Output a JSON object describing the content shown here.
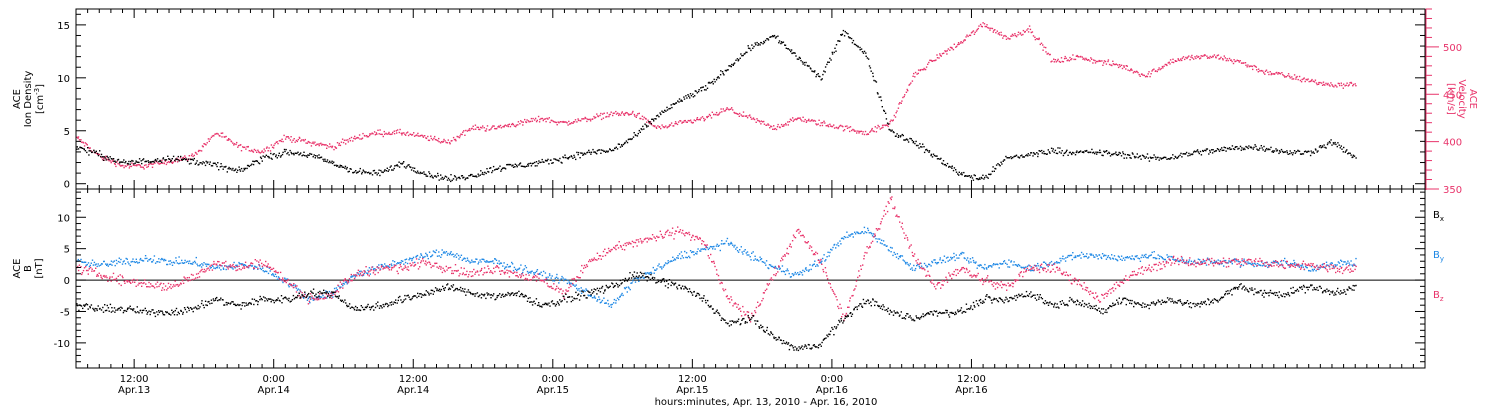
{
  "chart_data": [
    {
      "type": "scatter",
      "panel": "top",
      "ylabel_left": [
        "ACE",
        "Ion Density",
        "[cm",
        "-3",
        "]"
      ],
      "ylabel_right": [
        "ACE",
        "Velocity",
        "[km/s]"
      ],
      "ylim_left": [
        -0.5,
        16.5
      ],
      "ylim_right": [
        350,
        540
      ],
      "yticks_left": [
        0,
        5,
        10,
        15
      ],
      "yticks_right": [
        350,
        400,
        450,
        500
      ],
      "colors": {
        "density": "#000000",
        "velocity": "#e8336a"
      },
      "series": [
        {
          "axis": "left",
          "color": "#000000",
          "hours": [
            0,
            2,
            4,
            6,
            8,
            10,
            12,
            14,
            16,
            18,
            20,
            22,
            24,
            26,
            28,
            30,
            32,
            34,
            36,
            38,
            40,
            42,
            44,
            46,
            48,
            50,
            52,
            54,
            56,
            58,
            60,
            62,
            64,
            66,
            68,
            70,
            72,
            74,
            76,
            78,
            80,
            82,
            84,
            86,
            88,
            90,
            92,
            94,
            96,
            98,
            100,
            102,
            104,
            106,
            108,
            110
          ],
          "values": [
            3.5,
            2.8,
            2.0,
            2.2,
            2.5,
            2.2,
            1.8,
            1.2,
            2.5,
            3.0,
            2.8,
            2.0,
            1.2,
            1.0,
            2.0,
            1.0,
            0.5,
            0.8,
            1.5,
            1.8,
            2.0,
            2.5,
            3.0,
            3.2,
            4.5,
            6.5,
            8.0,
            9.0,
            11.0,
            13.0,
            14.0,
            12.0,
            10.0,
            14.5,
            12.0,
            5.0,
            4.0,
            2.5,
            1.0,
            0.5,
            2.5,
            2.8,
            3.2,
            3.0,
            3.0,
            2.8,
            2.5,
            2.5,
            3.0,
            3.2,
            3.5,
            3.5,
            3.0,
            3.0,
            4.0,
            2.5
          ],
          "breaks": [],
          "scatter": 0.45
        },
        {
          "axis": "right",
          "color": "#e8336a",
          "hours": [
            0,
            2,
            4,
            6,
            8,
            10,
            12,
            14,
            16,
            18,
            20,
            22,
            24,
            26,
            28,
            30,
            32,
            34,
            36,
            38,
            40,
            42,
            44,
            46,
            48,
            50,
            52,
            54,
            56,
            58,
            60,
            62,
            64,
            66,
            68,
            70,
            72,
            74,
            76,
            78,
            80,
            82,
            84,
            86,
            88,
            90,
            92,
            94,
            96,
            98,
            100,
            102,
            104,
            106,
            108,
            110
          ],
          "values": [
            405,
            385,
            375,
            375,
            380,
            385,
            410,
            395,
            390,
            405,
            400,
            395,
            405,
            410,
            410,
            405,
            400,
            415,
            415,
            420,
            425,
            420,
            425,
            430,
            430,
            415,
            420,
            425,
            435,
            425,
            415,
            425,
            420,
            415,
            410,
            420,
            470,
            490,
            505,
            525,
            510,
            520,
            485,
            490,
            485,
            480,
            470,
            485,
            490,
            490,
            485,
            475,
            470,
            465,
            460,
            462
          ],
          "breaks": [],
          "scatter": 4.5
        }
      ]
    },
    {
      "type": "scatter",
      "panel": "bottom",
      "ylabel_left": [
        "ACE",
        "B",
        "[nT]"
      ],
      "ylim": [
        -14,
        14.5
      ],
      "yticks": [
        -10,
        -5,
        0,
        5,
        10
      ],
      "legend": [
        {
          "label": "B",
          "sub": "x",
          "color": "#000000"
        },
        {
          "label": "B",
          "sub": "y",
          "color": "#1e88e5"
        },
        {
          "label": "B",
          "sub": "z",
          "color": "#e8336a"
        }
      ],
      "series": [
        {
          "name": "Bx",
          "color": "#000000",
          "hours": [
            0,
            2,
            4,
            6,
            8,
            10,
            12,
            14,
            16,
            18,
            20,
            22,
            24,
            26,
            28,
            30,
            32,
            34,
            36,
            38,
            40,
            42,
            44,
            46,
            48,
            50,
            52,
            54,
            56,
            58,
            60,
            62,
            64,
            66,
            68,
            70,
            72,
            74,
            76,
            78,
            80,
            82,
            84,
            86,
            88,
            90,
            92,
            94,
            96,
            98,
            100,
            102,
            104,
            106,
            108,
            110
          ],
          "values": [
            -4,
            -4.5,
            -4.5,
            -5,
            -5,
            -4.5,
            -3,
            -4,
            -3,
            -3,
            -2,
            -2,
            -4.5,
            -4,
            -3,
            -2,
            -1,
            -2,
            -2.5,
            -2,
            -4,
            -3,
            -2,
            -1,
            1,
            0,
            -1,
            -3,
            -7,
            -6,
            -9,
            -11,
            -10,
            -6,
            -3,
            -5,
            -6,
            -5,
            -5,
            -3,
            -3,
            -2,
            -4,
            -3,
            -5,
            -3,
            -4,
            -3,
            -4,
            -3,
            -1,
            -2,
            -2,
            -1,
            -2,
            -1
          ],
          "breaks": [],
          "scatter": 0.9
        },
        {
          "name": "By",
          "color": "#1e88e5",
          "hours": [
            0,
            2,
            4,
            6,
            8,
            10,
            12,
            14,
            16,
            18,
            20,
            22,
            24,
            26,
            28,
            30,
            32,
            34,
            36,
            38,
            40,
            42,
            44,
            46,
            48,
            50,
            52,
            54,
            56,
            58,
            60,
            62,
            64,
            66,
            68,
            70,
            72,
            74,
            76,
            78,
            80,
            82,
            84,
            86,
            88,
            90,
            92,
            94,
            96,
            98,
            100,
            102,
            104,
            106,
            108,
            110
          ],
          "values": [
            3,
            2.5,
            3,
            3.5,
            3,
            3,
            2,
            2.5,
            2,
            0,
            -3,
            -2,
            1,
            2,
            3,
            4,
            4.5,
            3,
            3,
            2,
            1,
            0,
            -2,
            -4,
            0,
            2,
            4,
            5,
            6,
            4,
            2,
            1,
            3,
            7,
            8,
            5,
            2,
            3,
            4,
            2,
            3,
            2,
            3,
            4,
            4,
            3.5,
            4,
            3.5,
            3,
            3,
            3,
            2.5,
            3,
            2,
            2.5,
            3
          ],
          "breaks": [],
          "scatter": 0.9
        },
        {
          "name": "Bz",
          "color": "#e8336a",
          "hours": [
            0,
            2,
            4,
            6,
            8,
            10,
            12,
            14,
            16,
            18,
            20,
            22,
            24,
            26,
            28,
            30,
            32,
            34,
            36,
            38,
            40,
            42,
            44,
            46,
            48,
            50,
            52,
            54,
            56,
            58,
            60,
            62,
            64,
            66,
            68,
            70,
            72,
            74,
            76,
            78,
            80,
            82,
            84,
            86,
            88,
            90,
            92,
            94,
            96,
            98,
            100,
            102,
            104,
            106,
            108,
            110
          ],
          "values": [
            2,
            1,
            0,
            -0.5,
            -1,
            0.5,
            3,
            2,
            3,
            0,
            -3,
            -2,
            1,
            2,
            2,
            3,
            2,
            1,
            2,
            1,
            0,
            -2,
            3,
            5,
            6,
            7,
            8,
            6,
            -3,
            -6,
            1,
            8,
            3,
            -6,
            5,
            13,
            4,
            -1,
            2,
            0,
            -1,
            2,
            2,
            0,
            -3,
            0,
            2,
            3,
            3,
            3,
            3,
            3,
            2.5,
            2.5,
            2,
            2
          ],
          "breaks": [],
          "scatter": 1.1
        }
      ]
    }
  ],
  "time_axis": {
    "tick_labels": [
      {
        "time": "12:00",
        "date": "Apr.13"
      },
      {
        "time": "0:00",
        "date": "Apr.14"
      },
      {
        "time": "12:00",
        "date": "Apr.14"
      },
      {
        "time": "0:00",
        "date": "Apr.15"
      },
      {
        "time": "12:00",
        "date": "Apr.15"
      },
      {
        "time": "0:00",
        "date": "Apr.16"
      },
      {
        "time": "12:00",
        "date": "Apr.16"
      }
    ],
    "label_hours": [
      5,
      17,
      29,
      41,
      53,
      65,
      77
    ],
    "xlim_hours": [
      0,
      116
    ],
    "xlabel": "hours:minutes, Apr. 13, 2010 - Apr. 16, 2010"
  }
}
